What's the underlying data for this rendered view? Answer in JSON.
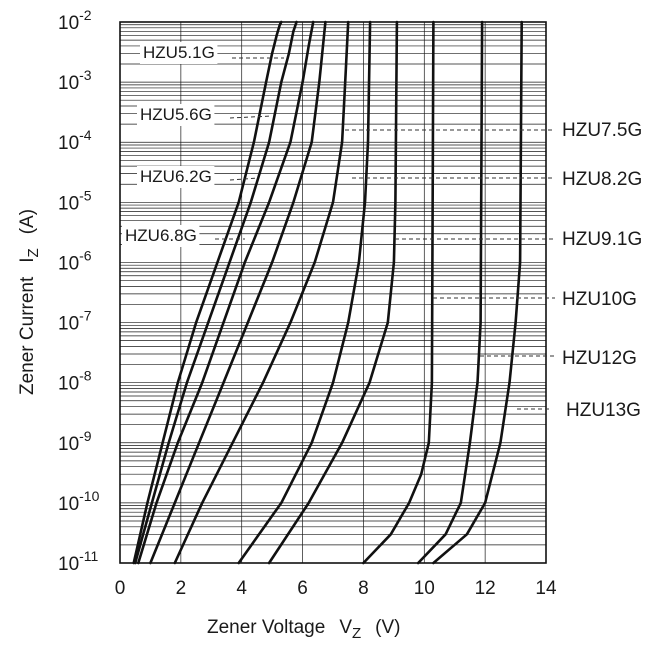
{
  "chart_data": {
    "type": "line",
    "title": "",
    "xlabel": "Zener Voltage",
    "xlabel_symbol": "V",
    "xlabel_sub": "Z",
    "xlabel_unit": "(V)",
    "ylabel": "Zener Current",
    "ylabel_symbol": "I",
    "ylabel_sub": "Z",
    "ylabel_unit": "(A)",
    "xlim": [
      0,
      14
    ],
    "ylim": [
      1e-11,
      0.01
    ],
    "yscale": "log",
    "grid": true,
    "x_ticks": [
      "0",
      "2",
      "4",
      "6",
      "8",
      "10",
      "12",
      "14"
    ],
    "y_ticks": [
      {
        "base": "10",
        "exp": "-11"
      },
      {
        "base": "10",
        "exp": "-10"
      },
      {
        "base": "10",
        "exp": "-9"
      },
      {
        "base": "10",
        "exp": "-8"
      },
      {
        "base": "10",
        "exp": "-7"
      },
      {
        "base": "10",
        "exp": "-6"
      },
      {
        "base": "10",
        "exp": "-5"
      },
      {
        "base": "10",
        "exp": "-4"
      },
      {
        "base": "10",
        "exp": "-3"
      },
      {
        "base": "10",
        "exp": "-2"
      }
    ],
    "series": [
      {
        "name": "HZU5.1G",
        "x": [
          0.45,
          0.9,
          1.4,
          1.9,
          2.5,
          3.2,
          3.9,
          4.4,
          4.8,
          5.0,
          5.15,
          5.25,
          5.3
        ],
        "y": [
          1e-11,
          1e-10,
          1e-09,
          1e-08,
          1e-07,
          1e-06,
          1e-05,
          0.0001,
          0.001,
          0.003,
          0.006,
          0.009,
          0.01
        ]
      },
      {
        "name": "HZU5.6G",
        "x": [
          0.5,
          1.05,
          1.6,
          2.2,
          2.9,
          3.6,
          4.3,
          4.9,
          5.3,
          5.55,
          5.7,
          5.8
        ],
        "y": [
          1e-11,
          1e-10,
          1e-09,
          1e-08,
          1e-07,
          1e-06,
          1e-05,
          0.0001,
          0.001,
          0.003,
          0.007,
          0.01
        ]
      },
      {
        "name": "HZU6.2G",
        "x": [
          0.6,
          1.2,
          1.9,
          2.7,
          3.4,
          4.1,
          4.9,
          5.6,
          6.0,
          6.2,
          6.35
        ],
        "y": [
          1e-11,
          1e-10,
          1e-09,
          1e-08,
          1e-07,
          1e-06,
          1e-05,
          0.0001,
          0.001,
          0.004,
          0.01
        ]
      },
      {
        "name": "HZU6.8G",
        "x": [
          1.0,
          1.8,
          2.6,
          3.4,
          4.2,
          5.0,
          5.7,
          6.3,
          6.55,
          6.75
        ],
        "y": [
          1e-11,
          1e-10,
          1e-09,
          1e-08,
          1e-07,
          1e-06,
          1e-05,
          0.0001,
          0.001,
          0.01
        ]
      },
      {
        "name": "HZU7.5G",
        "x": [
          1.8,
          2.7,
          3.7,
          4.7,
          5.6,
          6.4,
          7.0,
          7.3,
          7.4,
          7.5
        ],
        "y": [
          1e-11,
          1e-10,
          1e-09,
          1e-08,
          1e-07,
          1e-06,
          1e-05,
          0.0001,
          0.001,
          0.01
        ]
      },
      {
        "name": "HZU8.2G",
        "x": [
          3.9,
          5.3,
          6.3,
          7.0,
          7.5,
          7.85,
          8.05,
          8.15,
          8.22
        ],
        "y": [
          1e-11,
          1e-10,
          1e-09,
          1e-08,
          1e-07,
          1e-06,
          1e-05,
          0.0001,
          0.01
        ]
      },
      {
        "name": "HZU9.1G",
        "x": [
          4.9,
          6.2,
          7.3,
          8.2,
          8.8,
          9.0,
          9.05,
          9.1
        ],
        "y": [
          1e-11,
          1e-10,
          1e-09,
          1e-08,
          1e-07,
          1e-06,
          1e-05,
          0.01
        ]
      },
      {
        "name": "HZU10G",
        "x": [
          8.0,
          8.9,
          9.5,
          9.9,
          10.15,
          10.25,
          10.3
        ],
        "y": [
          1e-11,
          3e-11,
          1e-10,
          3e-10,
          1e-09,
          1e-08,
          0.01
        ]
      },
      {
        "name": "HZU12G",
        "x": [
          9.8,
          10.7,
          11.2,
          11.5,
          11.75,
          11.85,
          11.9
        ],
        "y": [
          1e-11,
          3e-11,
          1e-10,
          1e-09,
          1e-08,
          1e-07,
          0.01
        ]
      },
      {
        "name": "HZU13G",
        "x": [
          10.3,
          11.4,
          12.0,
          12.5,
          12.8,
          13.0,
          13.15,
          13.2
        ],
        "y": [
          1e-11,
          3e-11,
          1e-10,
          1e-09,
          1e-08,
          1e-07,
          1e-06,
          0.01
        ]
      }
    ],
    "labels": [
      {
        "text": "HZU5.1G",
        "side": "left"
      },
      {
        "text": "HZU5.6G",
        "side": "left"
      },
      {
        "text": "HZU6.2G",
        "side": "left"
      },
      {
        "text": "HZU6.8G",
        "side": "left"
      },
      {
        "text": "HZU7.5G",
        "side": "right"
      },
      {
        "text": "HZU8.2G",
        "side": "right"
      },
      {
        "text": "HZU9.1G",
        "side": "right"
      },
      {
        "text": "HZU10G",
        "side": "right"
      },
      {
        "text": "HZU12G",
        "side": "right"
      },
      {
        "text": "HZU13G",
        "side": "right"
      }
    ]
  }
}
